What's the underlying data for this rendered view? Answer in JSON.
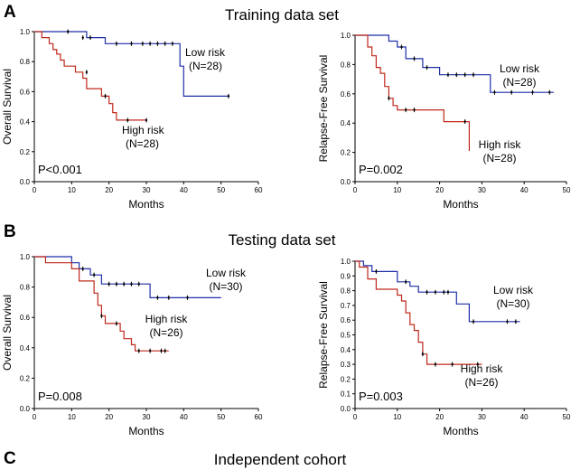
{
  "figure": {
    "panel_letters": [
      "A",
      "B",
      "C"
    ],
    "section_titles": [
      "Training data set",
      "Testing data set",
      "Independent cohort"
    ]
  },
  "colors": {
    "low_risk": "#1f2fa8",
    "high_risk": "#c0281c",
    "axis": "#000000"
  },
  "chart_data": [
    {
      "type": "line",
      "subtype": "kaplan-meier",
      "section": "Training data set",
      "xlabel": "Months",
      "ylabel": "Overall Survival",
      "xlim": [
        0,
        60
      ],
      "ylim": [
        0,
        1.0
      ],
      "xticks": [
        0,
        10,
        20,
        30,
        40,
        50,
        60
      ],
      "yticks": [
        0,
        0.2,
        0.4,
        0.6,
        0.8,
        1.0
      ],
      "p_value": "P<0.001",
      "series": [
        {
          "name": "Low risk",
          "n_label": "(N=28)",
          "color": "#1f2fa8",
          "steps": [
            [
              0,
              1.0
            ],
            [
              14,
              0.96
            ],
            [
              19,
              0.92
            ],
            [
              39,
              0.77
            ],
            [
              40,
              0.57
            ],
            [
              52,
              0.57
            ]
          ],
          "censored": [
            [
              9,
              1.0
            ],
            [
              13,
              0.96
            ],
            [
              15,
              0.96
            ],
            [
              22,
              0.92
            ],
            [
              26,
              0.92
            ],
            [
              29,
              0.92
            ],
            [
              31,
              0.92
            ],
            [
              33,
              0.92
            ],
            [
              35,
              0.92
            ],
            [
              37,
              0.92
            ],
            [
              52,
              0.57
            ]
          ]
        },
        {
          "name": "High risk",
          "n_label": "(N=28)",
          "color": "#c0281c",
          "steps": [
            [
              0,
              1.0
            ],
            [
              2,
              0.96
            ],
            [
              4,
              0.92
            ],
            [
              5,
              0.88
            ],
            [
              6,
              0.85
            ],
            [
              7,
              0.81
            ],
            [
              8,
              0.77
            ],
            [
              11,
              0.73
            ],
            [
              13,
              0.69
            ],
            [
              14,
              0.62
            ],
            [
              18,
              0.57
            ],
            [
              20,
              0.52
            ],
            [
              21,
              0.46
            ],
            [
              22,
              0.41
            ],
            [
              30,
              0.41
            ]
          ],
          "censored": [
            [
              14,
              0.73
            ],
            [
              19,
              0.57
            ],
            [
              25,
              0.41
            ],
            [
              30,
              0.41
            ]
          ]
        }
      ]
    },
    {
      "type": "line",
      "subtype": "kaplan-meier",
      "section": "Training data set",
      "xlabel": "Months",
      "ylabel": "Relapse-Free Survival",
      "xlim": [
        0,
        50
      ],
      "ylim": [
        0,
        1.0
      ],
      "xticks": [
        0,
        10,
        20,
        30,
        40,
        50
      ],
      "yticks": [
        0,
        0.2,
        0.4,
        0.6,
        0.8,
        1.0
      ],
      "p_value": "P=0.002",
      "series": [
        {
          "name": "Low risk",
          "n_label": "(N=28)",
          "color": "#1f2fa8",
          "steps": [
            [
              0,
              1.0
            ],
            [
              8,
              0.96
            ],
            [
              10,
              0.92
            ],
            [
              12,
              0.84
            ],
            [
              16,
              0.78
            ],
            [
              20,
              0.73
            ],
            [
              32,
              0.61
            ],
            [
              47,
              0.61
            ]
          ],
          "censored": [
            [
              11,
              0.92
            ],
            [
              14,
              0.84
            ],
            [
              17,
              0.78
            ],
            [
              22,
              0.73
            ],
            [
              24,
              0.73
            ],
            [
              26,
              0.73
            ],
            [
              28,
              0.73
            ],
            [
              33,
              0.61
            ],
            [
              37,
              0.61
            ],
            [
              42,
              0.61
            ],
            [
              46,
              0.61
            ]
          ]
        },
        {
          "name": "High risk",
          "n_label": "(N=28)",
          "color": "#c0281c",
          "steps": [
            [
              0,
              1.0
            ],
            [
              3,
              0.92
            ],
            [
              4,
              0.86
            ],
            [
              5,
              0.78
            ],
            [
              6,
              0.74
            ],
            [
              7,
              0.65
            ],
            [
              8,
              0.57
            ],
            [
              9,
              0.52
            ],
            [
              10,
              0.49
            ],
            [
              21,
              0.41
            ],
            [
              27,
              0.21
            ]
          ],
          "censored": [
            [
              8,
              0.57
            ],
            [
              12,
              0.49
            ],
            [
              14,
              0.49
            ],
            [
              26,
              0.41
            ]
          ]
        }
      ]
    },
    {
      "type": "line",
      "subtype": "kaplan-meier",
      "section": "Testing data set",
      "xlabel": "Months",
      "ylabel": "Overall Survival",
      "xlim": [
        0,
        60
      ],
      "ylim": [
        0,
        1.0
      ],
      "xticks": [
        0,
        10,
        20,
        30,
        40,
        50,
        60
      ],
      "yticks": [
        0,
        0.2,
        0.4,
        0.6,
        0.8,
        1.0
      ],
      "p_value": "P=0.008",
      "series": [
        {
          "name": "Low risk",
          "n_label": "(N=30)",
          "color": "#1f2fa8",
          "steps": [
            [
              0,
              1.0
            ],
            [
              10,
              0.96
            ],
            [
              12,
              0.92
            ],
            [
              15,
              0.88
            ],
            [
              18,
              0.82
            ],
            [
              31,
              0.73
            ],
            [
              50,
              0.73
            ]
          ],
          "censored": [
            [
              13,
              0.92
            ],
            [
              16,
              0.88
            ],
            [
              20,
              0.82
            ],
            [
              22,
              0.82
            ],
            [
              24,
              0.82
            ],
            [
              26,
              0.82
            ],
            [
              28,
              0.82
            ],
            [
              33,
              0.73
            ],
            [
              36,
              0.73
            ],
            [
              41,
              0.73
            ]
          ]
        },
        {
          "name": "High risk",
          "n_label": "(N=26)",
          "color": "#c0281c",
          "steps": [
            [
              0,
              1.0
            ],
            [
              3,
              0.96
            ],
            [
              10,
              0.92
            ],
            [
              12,
              0.84
            ],
            [
              16,
              0.76
            ],
            [
              17,
              0.68
            ],
            [
              18,
              0.61
            ],
            [
              19,
              0.56
            ],
            [
              23,
              0.51
            ],
            [
              24,
              0.46
            ],
            [
              26,
              0.42
            ],
            [
              27,
              0.38
            ],
            [
              36,
              0.38
            ]
          ],
          "censored": [
            [
              18,
              0.61
            ],
            [
              22,
              0.56
            ],
            [
              28,
              0.38
            ],
            [
              31,
              0.38
            ],
            [
              34,
              0.38
            ],
            [
              35,
              0.38
            ]
          ]
        }
      ]
    },
    {
      "type": "line",
      "subtype": "kaplan-meier",
      "section": "Testing data set",
      "xlabel": "Months",
      "ylabel": "Relapse-Free Survival",
      "xlim": [
        0,
        50
      ],
      "ylim": [
        0,
        1.0
      ],
      "xticks": [
        0,
        10,
        20,
        30,
        40,
        50
      ],
      "yticks": [
        0,
        0.1,
        0.2,
        0.3,
        0.4,
        0.5,
        0.6,
        0.7,
        0.8,
        0.9,
        1.0
      ],
      "p_value": "P=0.003",
      "series": [
        {
          "name": "Low risk",
          "n_label": "(N=30)",
          "color": "#1f2fa8",
          "steps": [
            [
              0,
              1.0
            ],
            [
              2,
              0.97
            ],
            [
              4,
              0.93
            ],
            [
              10,
              0.86
            ],
            [
              13,
              0.83
            ],
            [
              15,
              0.79
            ],
            [
              24,
              0.71
            ],
            [
              27,
              0.59
            ],
            [
              39,
              0.59
            ]
          ],
          "censored": [
            [
              5,
              0.93
            ],
            [
              12,
              0.86
            ],
            [
              17,
              0.79
            ],
            [
              19,
              0.79
            ],
            [
              21,
              0.79
            ],
            [
              22,
              0.79
            ],
            [
              28,
              0.59
            ],
            [
              36,
              0.59
            ],
            [
              38,
              0.59
            ]
          ]
        },
        {
          "name": "High risk",
          "n_label": "(N=26)",
          "color": "#c0281c",
          "steps": [
            [
              0,
              1.0
            ],
            [
              1,
              0.96
            ],
            [
              3,
              0.88
            ],
            [
              5,
              0.81
            ],
            [
              10,
              0.77
            ],
            [
              11,
              0.73
            ],
            [
              12,
              0.65
            ],
            [
              13,
              0.57
            ],
            [
              14,
              0.53
            ],
            [
              15,
              0.45
            ],
            [
              16,
              0.37
            ],
            [
              17,
              0.3
            ],
            [
              30,
              0.3
            ]
          ],
          "censored": [
            [
              16,
              0.37
            ],
            [
              19,
              0.3
            ],
            [
              23,
              0.3
            ],
            [
              29,
              0.3
            ]
          ]
        }
      ]
    }
  ]
}
